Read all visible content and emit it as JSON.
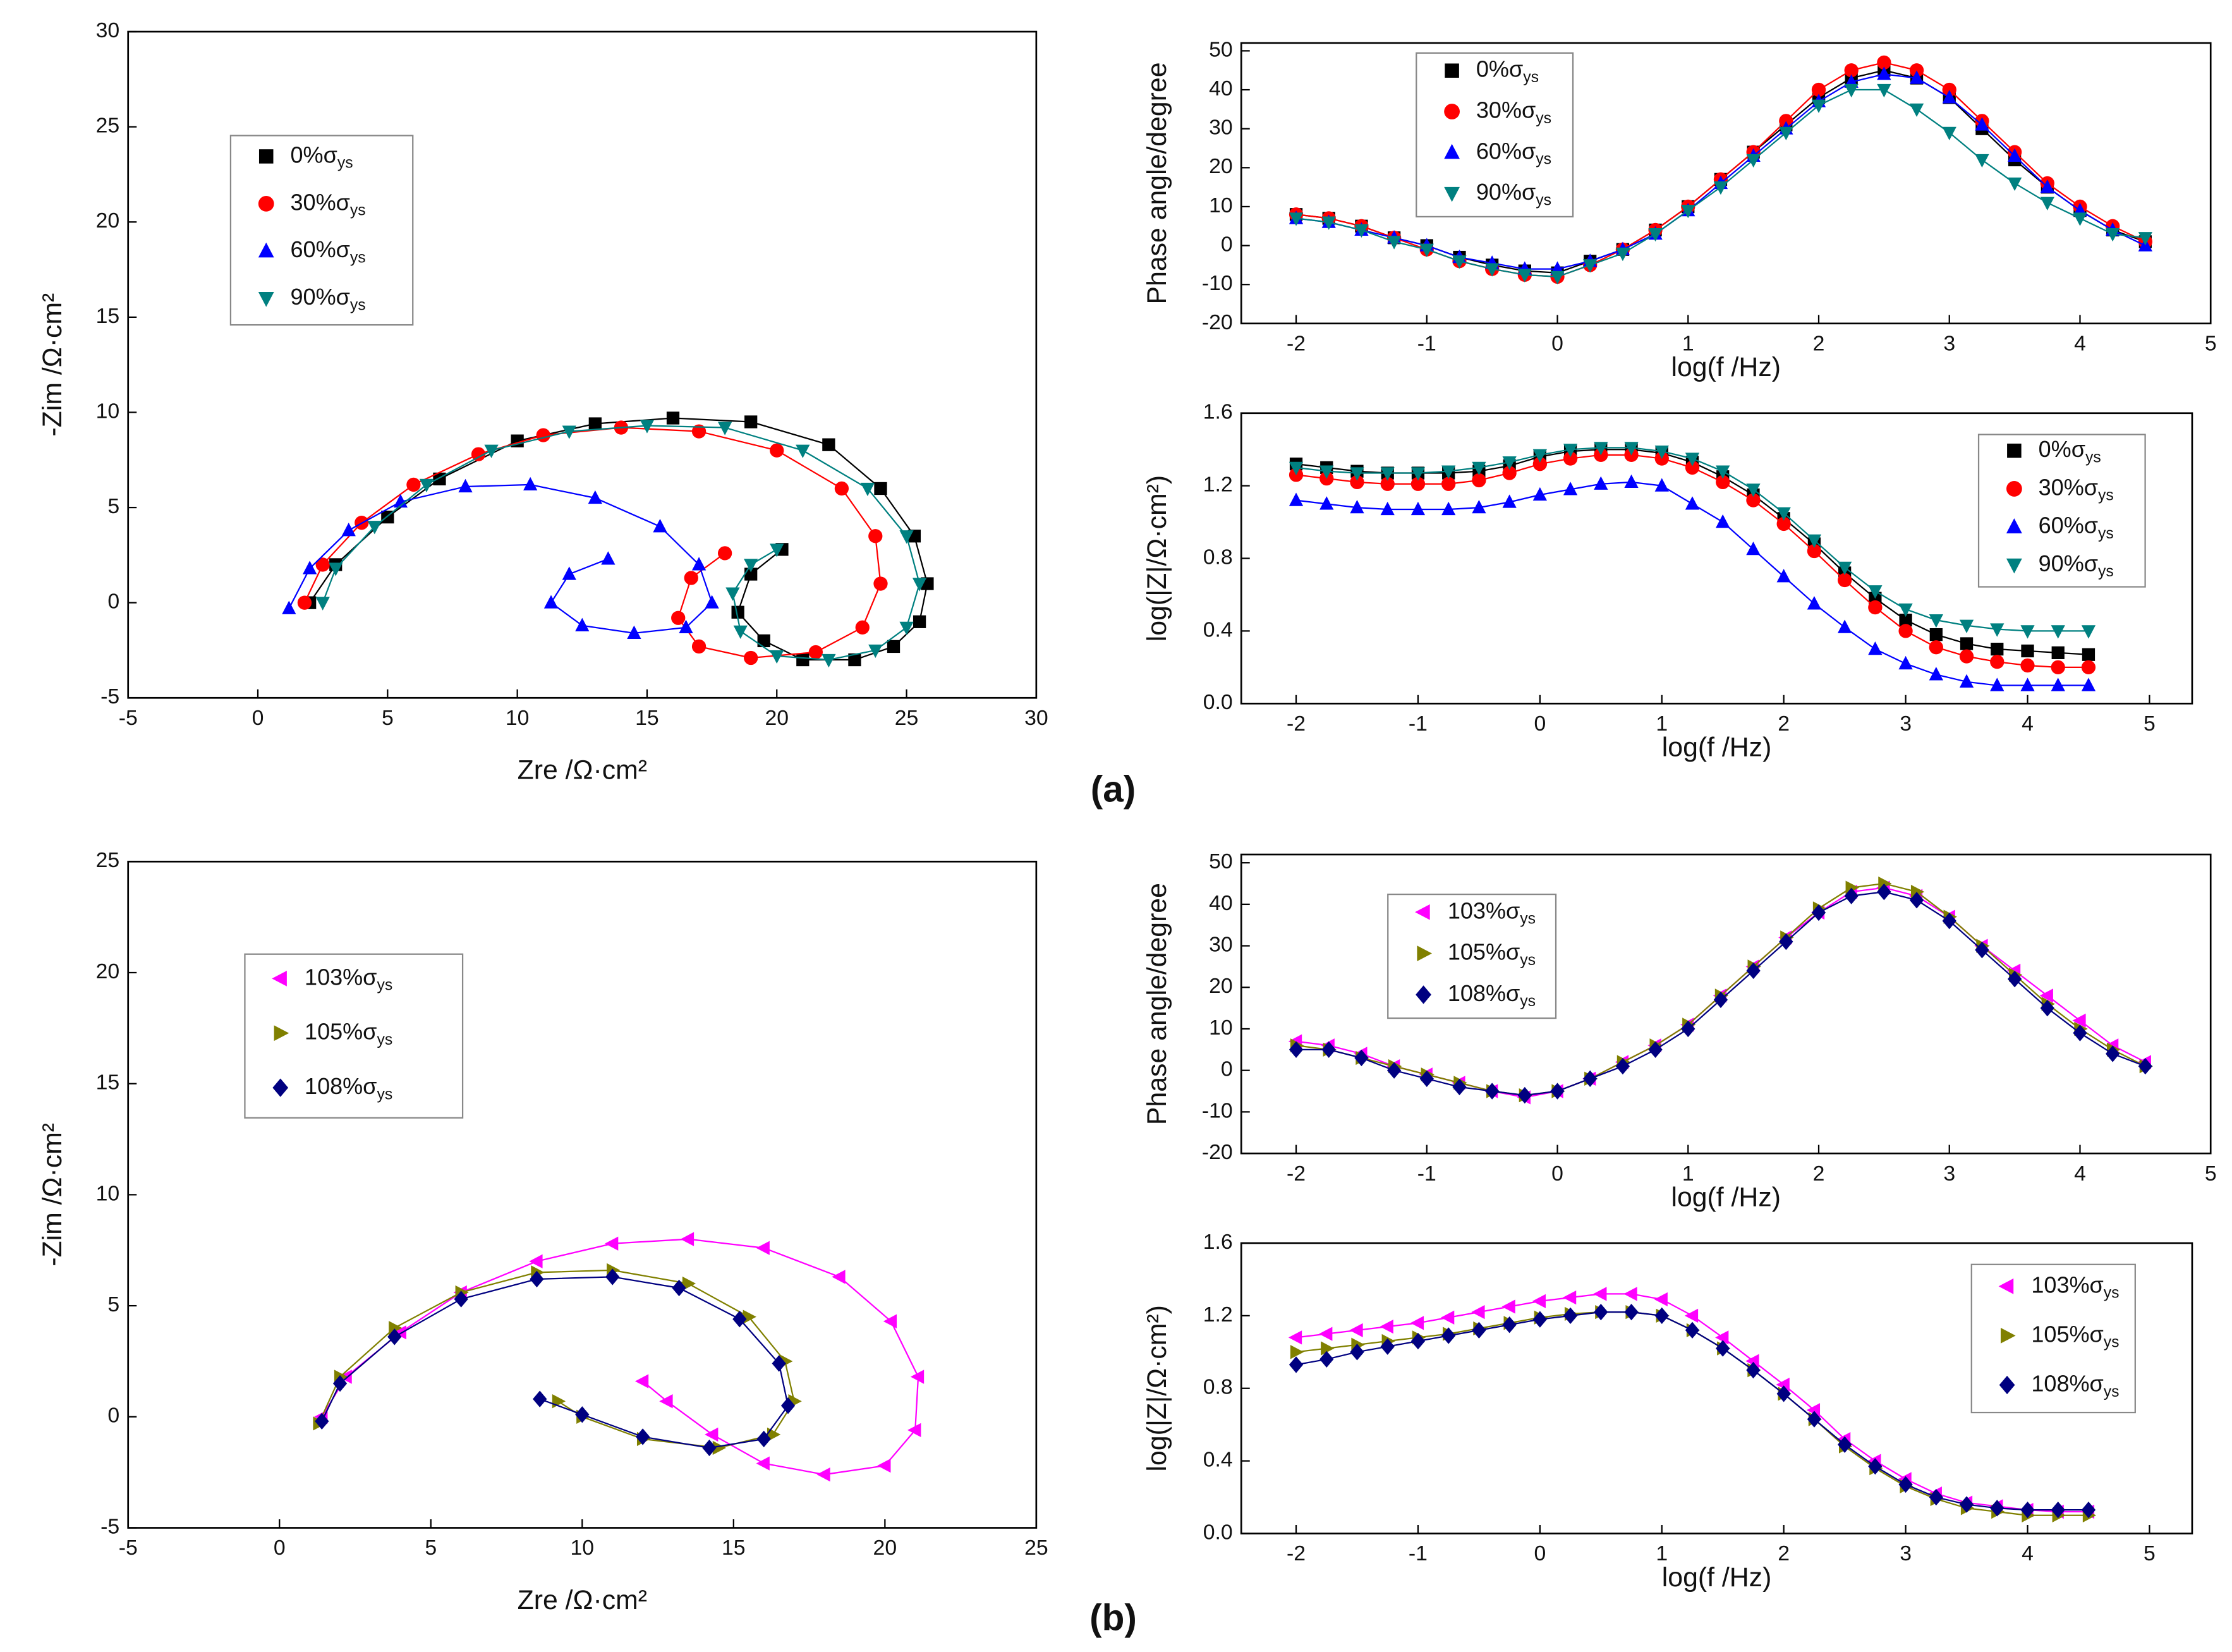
{
  "panel_labels": [
    "(a)",
    "(b)"
  ],
  "chart_data": [
    {
      "type": "scatter",
      "xlabel": "Zre /Ω·cm²",
      "ylabel": "-Zim /Ω·cm²",
      "xlim": [
        -5,
        30
      ],
      "ylim": [
        -5,
        30
      ],
      "xticks": [
        -5,
        0,
        5,
        10,
        15,
        20,
        25,
        30
      ],
      "yticks": [
        -5,
        0,
        5,
        10,
        15,
        20,
        25,
        30
      ],
      "series": [
        {
          "name": "0%σys",
          "color": "#000000",
          "marker": "square",
          "x": [
            2,
            3,
            5,
            7,
            10,
            13,
            16,
            19,
            22,
            24,
            25.3,
            25.8,
            25.5,
            24.5,
            23,
            21,
            19.5,
            18.5,
            19,
            20.2
          ],
          "values": [
            0,
            2,
            4.5,
            6.5,
            8.5,
            9.4,
            9.7,
            9.5,
            8.3,
            6,
            3.5,
            1,
            -1,
            -2.3,
            -3,
            -3,
            -2,
            -0.5,
            1.5,
            2.8
          ]
        },
        {
          "name": "30%σys",
          "color": "#ff0000",
          "marker": "circle",
          "x": [
            1.8,
            2.5,
            4,
            6,
            8.5,
            11,
            14,
            17,
            20,
            22.5,
            23.8,
            24,
            23.3,
            21.5,
            19,
            17,
            16.2,
            16.7,
            18
          ],
          "values": [
            0,
            2,
            4.2,
            6.2,
            7.8,
            8.8,
            9.2,
            9,
            8,
            6,
            3.5,
            1,
            -1.3,
            -2.6,
            -2.9,
            -2.3,
            -0.8,
            1.3,
            2.6
          ]
        },
        {
          "name": "60%σys",
          "color": "#0000ff",
          "marker": "triup",
          "x": [
            1.2,
            2,
            3.5,
            5.5,
            8,
            10.5,
            13,
            15.5,
            17,
            17.5,
            16.5,
            14.5,
            12.5,
            11.3,
            12,
            13.5
          ],
          "values": [
            -0.3,
            1.8,
            3.8,
            5.3,
            6.1,
            6.2,
            5.5,
            4,
            2,
            0,
            -1.3,
            -1.6,
            -1.2,
            0,
            1.5,
            2.3
          ]
        },
        {
          "name": "90%σys",
          "color": "#008080",
          "marker": "tridown",
          "x": [
            2.5,
            3,
            4.5,
            6.5,
            9,
            12,
            15,
            18,
            21,
            23.5,
            25,
            25.5,
            25,
            23.8,
            22,
            20,
            18.6,
            18.3,
            19,
            20
          ],
          "values": [
            0,
            1.8,
            4,
            6.2,
            8,
            9,
            9.3,
            9.2,
            8,
            6,
            3.5,
            1,
            -1.3,
            -2.5,
            -3,
            -2.8,
            -1.5,
            0.5,
            2,
            2.8
          ]
        }
      ]
    },
    {
      "type": "line",
      "xlabel": "log(f /Hz)",
      "ylabel": "Phase angle/degree",
      "xlim": [
        -2.42,
        5
      ],
      "ylim": [
        -20,
        52
      ],
      "xticks": [
        -2,
        -1,
        0,
        1,
        2,
        3,
        4,
        5
      ],
      "yticks": [
        -20,
        -10,
        0,
        10,
        20,
        30,
        40,
        50
      ],
      "x": [
        -2,
        -1.75,
        -1.5,
        -1.25,
        -1,
        -0.75,
        -0.5,
        -0.25,
        0,
        0.25,
        0.5,
        0.75,
        1,
        1.25,
        1.5,
        1.75,
        2,
        2.25,
        2.5,
        2.75,
        3,
        3.25,
        3.5,
        3.75,
        4,
        4.25,
        4.5
      ],
      "series": [
        {
          "name": "0%σys",
          "color": "#000000",
          "marker": "square",
          "values": [
            8,
            7,
            5,
            2,
            0,
            -3,
            -5,
            -6.5,
            -7,
            -4,
            -1,
            4,
            10,
            17,
            24,
            31,
            38,
            43,
            45,
            43,
            38,
            30,
            22,
            15,
            9,
            4,
            1
          ]
        },
        {
          "name": "30%σys",
          "color": "#ff0000",
          "marker": "circle",
          "values": [
            8,
            7,
            5,
            2,
            -1,
            -4,
            -6,
            -7.5,
            -8,
            -5,
            -1,
            4,
            10,
            17,
            24,
            32,
            40,
            45,
            47,
            45,
            40,
            32,
            24,
            16,
            10,
            5,
            1
          ]
        },
        {
          "name": "60%σys",
          "color": "#0000ff",
          "marker": "triup",
          "values": [
            7,
            6,
            4,
            2,
            0,
            -3,
            -4.5,
            -6,
            -6,
            -4,
            -1,
            3,
            9,
            16,
            23,
            30,
            37,
            42,
            44,
            43,
            38,
            31,
            23,
            15,
            9,
            4,
            0
          ]
        },
        {
          "name": "90%σys",
          "color": "#008080",
          "marker": "tridown",
          "values": [
            7,
            6,
            4,
            1,
            -1,
            -4,
            -6,
            -7.5,
            -8,
            -5,
            -2,
            3,
            9,
            15,
            22,
            29,
            36,
            40,
            40,
            35,
            29,
            22,
            16,
            11,
            7,
            3,
            2
          ]
        }
      ]
    },
    {
      "type": "line",
      "xlabel": "log(f /Hz)",
      "ylabel": "log(|Z|/Ω·cm²)",
      "xlim": [
        -2.45,
        5.35
      ],
      "ylim": [
        0,
        1.6
      ],
      "xticks": [
        -2,
        -1,
        0,
        1,
        2,
        3,
        4,
        5
      ],
      "yticks": [
        {
          "value": 0,
          "label": "0.0"
        },
        0.4,
        0.8,
        1.2,
        1.6
      ],
      "x": [
        -2,
        -1.75,
        -1.5,
        -1.25,
        -1,
        -0.75,
        -0.5,
        -0.25,
        0,
        0.25,
        0.5,
        0.75,
        1,
        1.25,
        1.5,
        1.75,
        2,
        2.25,
        2.5,
        2.75,
        3,
        3.25,
        3.5,
        3.75,
        4,
        4.25,
        4.5
      ],
      "series": [
        {
          "name": "0%σys",
          "color": "#000000",
          "marker": "square",
          "values": [
            1.32,
            1.3,
            1.28,
            1.27,
            1.27,
            1.27,
            1.28,
            1.31,
            1.36,
            1.39,
            1.4,
            1.4,
            1.38,
            1.33,
            1.25,
            1.15,
            1.02,
            0.88,
            0.72,
            0.58,
            0.46,
            0.38,
            0.33,
            0.3,
            0.29,
            0.28,
            0.27
          ]
        },
        {
          "name": "30%σys",
          "color": "#ff0000",
          "marker": "circle",
          "values": [
            1.26,
            1.24,
            1.22,
            1.21,
            1.21,
            1.21,
            1.23,
            1.27,
            1.32,
            1.35,
            1.37,
            1.37,
            1.35,
            1.3,
            1.22,
            1.12,
            0.99,
            0.84,
            0.68,
            0.53,
            0.4,
            0.31,
            0.26,
            0.23,
            0.21,
            0.2,
            0.2
          ]
        },
        {
          "name": "60%σys",
          "color": "#0000ff",
          "marker": "triup",
          "values": [
            1.12,
            1.1,
            1.08,
            1.07,
            1.07,
            1.07,
            1.08,
            1.11,
            1.15,
            1.18,
            1.21,
            1.22,
            1.2,
            1.1,
            1,
            0.85,
            0.7,
            0.55,
            0.42,
            0.3,
            0.22,
            0.16,
            0.12,
            0.1,
            0.1,
            0.1,
            0.1
          ]
        },
        {
          "name": "90%σys",
          "color": "#008080",
          "marker": "tridown",
          "values": [
            1.3,
            1.28,
            1.27,
            1.27,
            1.27,
            1.28,
            1.3,
            1.33,
            1.37,
            1.4,
            1.41,
            1.41,
            1.39,
            1.35,
            1.28,
            1.18,
            1.05,
            0.9,
            0.75,
            0.62,
            0.52,
            0.46,
            0.43,
            0.41,
            0.4,
            0.4,
            0.4
          ]
        }
      ]
    },
    {
      "type": "scatter",
      "xlabel": "Zre /Ω·cm²",
      "ylabel": "-Zim /Ω·cm²",
      "xlim": [
        -5,
        25
      ],
      "ylim": [
        -5,
        25
      ],
      "xticks": [
        -5,
        0,
        5,
        10,
        15,
        20,
        25
      ],
      "yticks": [
        -5,
        0,
        5,
        10,
        15,
        20,
        25
      ],
      "series": [
        {
          "name": "103%σys",
          "color": "#ff00ff",
          "marker": "trileft",
          "x": [
            1.4,
            2.2,
            4,
            6,
            8.5,
            11,
            13.5,
            16,
            18.5,
            20.2,
            21.1,
            21,
            20,
            18,
            16,
            14.3,
            12.8,
            12
          ],
          "values": [
            0,
            1.8,
            3.8,
            5.6,
            7,
            7.8,
            8,
            7.6,
            6.3,
            4.3,
            1.8,
            -0.6,
            -2.2,
            -2.6,
            -2.1,
            -0.8,
            0.7,
            1.6
          ]
        },
        {
          "name": "105%σys",
          "color": "#808000",
          "marker": "triright",
          "x": [
            1.3,
            2,
            3.8,
            6,
            8.5,
            11,
            13.5,
            15.5,
            16.7,
            17,
            16.3,
            14.5,
            12,
            10,
            9.2
          ],
          "values": [
            -0.3,
            1.8,
            4,
            5.6,
            6.5,
            6.6,
            6,
            4.5,
            2.5,
            0.7,
            -0.8,
            -1.4,
            -1,
            0,
            0.7
          ]
        },
        {
          "name": "108%σys",
          "color": "#000080",
          "marker": "diamond",
          "x": [
            1.4,
            2,
            3.8,
            6,
            8.5,
            11,
            13.2,
            15.2,
            16.5,
            16.8,
            16,
            14.2,
            12,
            10,
            8.6
          ],
          "values": [
            -0.2,
            1.5,
            3.6,
            5.3,
            6.2,
            6.3,
            5.8,
            4.4,
            2.4,
            0.5,
            -1,
            -1.4,
            -0.9,
            0.1,
            0.8
          ]
        }
      ]
    },
    {
      "type": "line",
      "xlabel": "log(f /Hz)",
      "ylabel": "Phase angle/degree",
      "xlim": [
        -2.42,
        5
      ],
      "ylim": [
        -20,
        52
      ],
      "xticks": [
        -2,
        -1,
        0,
        1,
        2,
        3,
        4,
        5
      ],
      "yticks": [
        -20,
        -10,
        0,
        10,
        20,
        30,
        40,
        50
      ],
      "x": [
        -2,
        -1.75,
        -1.5,
        -1.25,
        -1,
        -0.75,
        -0.5,
        -0.25,
        0,
        0.25,
        0.5,
        0.75,
        1,
        1.25,
        1.5,
        1.75,
        2,
        2.25,
        2.5,
        2.75,
        3,
        3.25,
        3.5,
        3.75,
        4,
        4.25,
        4.5
      ],
      "series": [
        {
          "name": "103%σys",
          "color": "#ff00ff",
          "marker": "trileft",
          "values": [
            7,
            6,
            4,
            1,
            -1,
            -3,
            -5,
            -6.5,
            -5,
            -2,
            2,
            6,
            11,
            18,
            25,
            32,
            38,
            43,
            44,
            42,
            37,
            30,
            24,
            18,
            12,
            6,
            2
          ]
        },
        {
          "name": "105%σys",
          "color": "#808000",
          "marker": "triright",
          "values": [
            6,
            5,
            3,
            1,
            -1,
            -3,
            -5,
            -6,
            -5,
            -2,
            2,
            6,
            11,
            18,
            25,
            32,
            39,
            44,
            45,
            43,
            37,
            30,
            23,
            16,
            10,
            5,
            1
          ]
        },
        {
          "name": "108%σys",
          "color": "#000080",
          "marker": "diamond",
          "values": [
            5,
            5,
            3,
            0,
            -2,
            -4,
            -5,
            -6,
            -5,
            -2,
            1,
            5,
            10,
            17,
            24,
            31,
            38,
            42,
            43,
            41,
            36,
            29,
            22,
            15,
            9,
            4,
            1
          ]
        }
      ]
    },
    {
      "type": "line",
      "xlabel": "log(f /Hz)",
      "ylabel": "log(|Z|/Ω·cm²)",
      "xlim": [
        -2.45,
        5.35
      ],
      "ylim": [
        0,
        1.6
      ],
      "xticks": [
        -2,
        -1,
        0,
        1,
        2,
        3,
        4,
        5
      ],
      "yticks": [
        {
          "value": 0,
          "label": "0.0"
        },
        0.4,
        0.8,
        1.2,
        1.6
      ],
      "x": [
        -2,
        -1.75,
        -1.5,
        -1.25,
        -1,
        -0.75,
        -0.5,
        -0.25,
        0,
        0.25,
        0.5,
        0.75,
        1,
        1.25,
        1.5,
        1.75,
        2,
        2.25,
        2.5,
        2.75,
        3,
        3.25,
        3.5,
        3.75,
        4,
        4.25,
        4.5
      ],
      "series": [
        {
          "name": "103%σys",
          "color": "#ff00ff",
          "marker": "trileft",
          "values": [
            1.08,
            1.1,
            1.12,
            1.14,
            1.16,
            1.19,
            1.22,
            1.25,
            1.28,
            1.3,
            1.32,
            1.32,
            1.29,
            1.2,
            1.08,
            0.95,
            0.82,
            0.68,
            0.52,
            0.4,
            0.3,
            0.22,
            0.17,
            0.15,
            0.13,
            0.12,
            0.12
          ]
        },
        {
          "name": "105%σys",
          "color": "#808000",
          "marker": "triright",
          "values": [
            1,
            1.02,
            1.04,
            1.06,
            1.08,
            1.1,
            1.13,
            1.16,
            1.19,
            1.21,
            1.22,
            1.22,
            1.2,
            1.12,
            1.02,
            0.9,
            0.77,
            0.63,
            0.48,
            0.36,
            0.26,
            0.19,
            0.14,
            0.12,
            0.1,
            0.1,
            0.1
          ]
        },
        {
          "name": "108%σys",
          "color": "#000080",
          "marker": "diamond",
          "values": [
            0.93,
            0.96,
            1,
            1.03,
            1.06,
            1.09,
            1.12,
            1.15,
            1.18,
            1.2,
            1.22,
            1.22,
            1.2,
            1.12,
            1.02,
            0.9,
            0.77,
            0.63,
            0.49,
            0.37,
            0.27,
            0.2,
            0.16,
            0.14,
            0.13,
            0.13,
            0.13
          ]
        }
      ]
    }
  ]
}
